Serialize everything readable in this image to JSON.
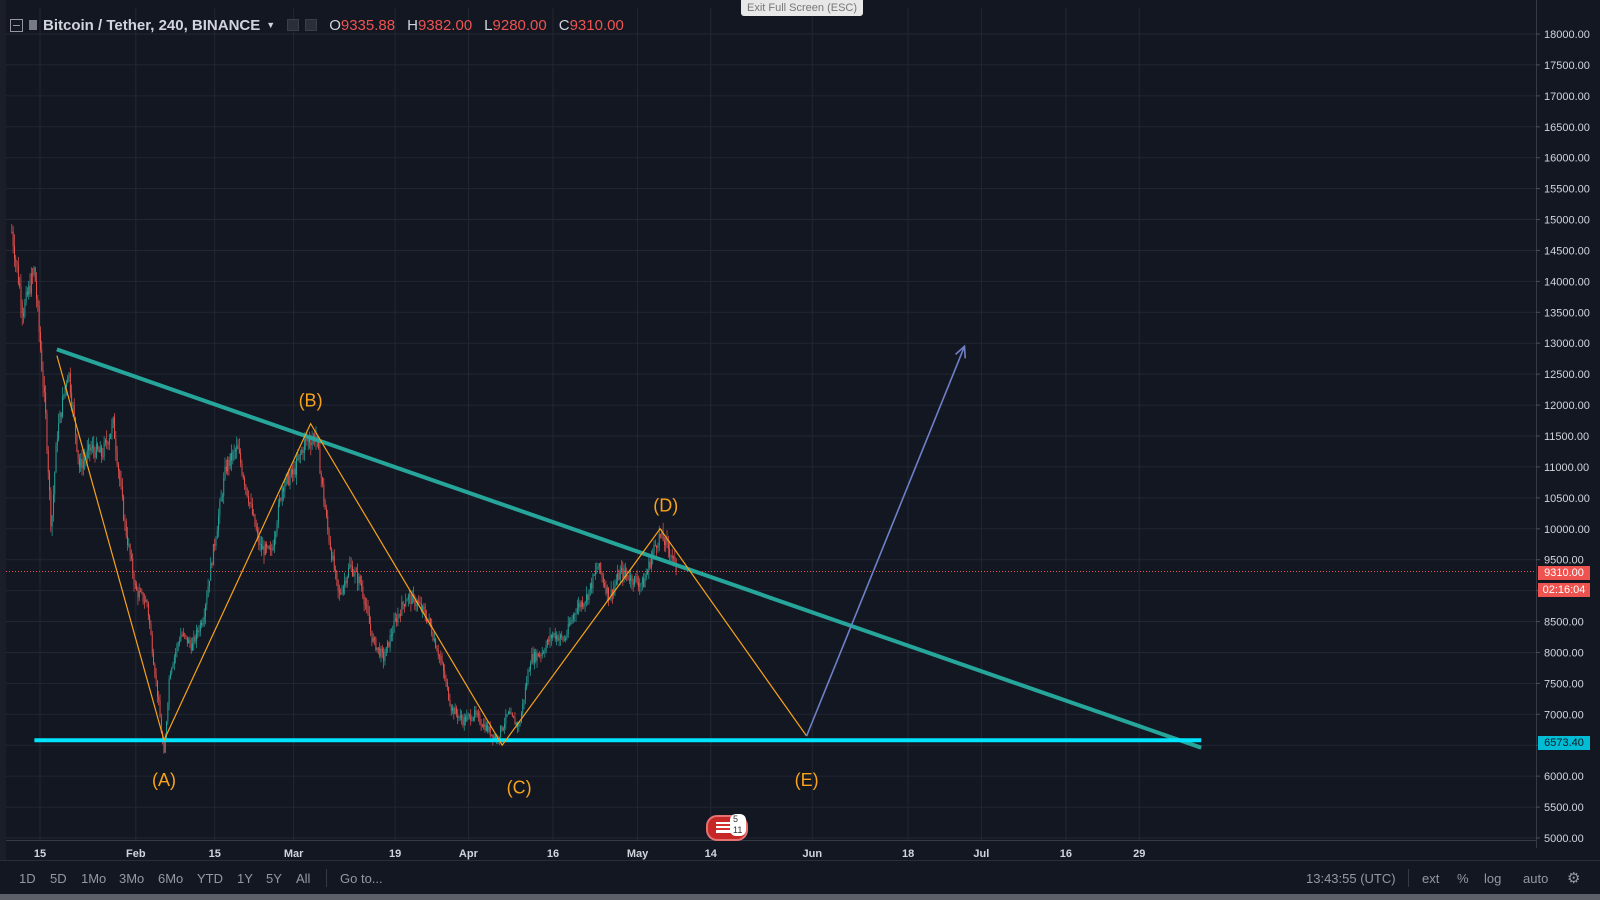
{
  "header": {
    "symbol": "Bitcoin / Tether, 240, BINANCE",
    "open_label": "O",
    "open": "9335.88",
    "high_label": "H",
    "high": "9382.00",
    "low_label": "L",
    "low": "9280.00",
    "close_label": "C",
    "close": "9310.00"
  },
  "exit_fullscreen": "Exit Full Screen (ESC)",
  "chart_data": {
    "type": "line",
    "title": "Bitcoin / Tether, 240, BINANCE",
    "xlabel": "",
    "ylabel": "",
    "ylim": [
      5000,
      18250
    ],
    "y_ticks": [
      "18000.00",
      "17500.00",
      "17000.00",
      "16500.00",
      "16000.00",
      "15500.00",
      "15000.00",
      "14500.00",
      "14000.00",
      "13500.00",
      "13000.00",
      "12500.00",
      "12000.00",
      "11500.00",
      "11000.00",
      "10500.00",
      "10000.00",
      "9500.00",
      "9000.00",
      "8500.00",
      "8000.00",
      "7500.00",
      "7000.00",
      "6500.00",
      "6000.00",
      "5500.00",
      "5000.00"
    ],
    "x_ticks": [
      {
        "label": "15",
        "date": "2018-01-15"
      },
      {
        "label": "Feb",
        "date": "2018-02-01"
      },
      {
        "label": "15",
        "date": "2018-02-15"
      },
      {
        "label": "Mar",
        "date": "2018-03-01"
      },
      {
        "label": "19",
        "date": "2018-03-19"
      },
      {
        "label": "Apr",
        "date": "2018-04-01"
      },
      {
        "label": "16",
        "date": "2018-04-16"
      },
      {
        "label": "May",
        "date": "2018-05-01"
      },
      {
        "label": "14",
        "date": "2018-05-14"
      },
      {
        "label": "Jun",
        "date": "2018-06-01"
      },
      {
        "label": "18",
        "date": "2018-06-18"
      },
      {
        "label": "Jul",
        "date": "2018-07-01"
      },
      {
        "label": "16",
        "date": "2018-07-16"
      },
      {
        "label": "29",
        "date": "2018-07-29"
      }
    ],
    "price_path": [
      [
        "2018-01-10",
        14800
      ],
      [
        "2018-01-12",
        13500
      ],
      [
        "2018-01-14",
        14200
      ],
      [
        "2018-01-16",
        11800
      ],
      [
        "2018-01-17",
        10000
      ],
      [
        "2018-01-18",
        11500
      ],
      [
        "2018-01-20",
        12600
      ],
      [
        "2018-01-22",
        11000
      ],
      [
        "2018-01-24",
        11300
      ],
      [
        "2018-01-26",
        11200
      ],
      [
        "2018-01-28",
        11700
      ],
      [
        "2018-01-30",
        10100
      ],
      [
        "2018-02-01",
        9000
      ],
      [
        "2018-02-03",
        8800
      ],
      [
        "2018-02-05",
        7200
      ],
      [
        "2018-02-06",
        6300
      ],
      [
        "2018-02-07",
        7700
      ],
      [
        "2018-02-09",
        8300
      ],
      [
        "2018-02-11",
        8100
      ],
      [
        "2018-02-13",
        8600
      ],
      [
        "2018-02-15",
        9800
      ],
      [
        "2018-02-17",
        11000
      ],
      [
        "2018-02-19",
        11300
      ],
      [
        "2018-02-21",
        10500
      ],
      [
        "2018-02-23",
        9700
      ],
      [
        "2018-02-25",
        9600
      ],
      [
        "2018-02-27",
        10700
      ],
      [
        "2018-03-01",
        10900
      ],
      [
        "2018-03-03",
        11400
      ],
      [
        "2018-03-05",
        11500
      ],
      [
        "2018-03-07",
        10000
      ],
      [
        "2018-03-09",
        8900
      ],
      [
        "2018-03-11",
        9400
      ],
      [
        "2018-03-13",
        9100
      ],
      [
        "2018-03-15",
        8200
      ],
      [
        "2018-03-17",
        7900
      ],
      [
        "2018-03-19",
        8500
      ],
      [
        "2018-03-21",
        8900
      ],
      [
        "2018-03-23",
        8800
      ],
      [
        "2018-03-25",
        8500
      ],
      [
        "2018-03-27",
        7900
      ],
      [
        "2018-03-29",
        7100
      ],
      [
        "2018-03-31",
        6900
      ],
      [
        "2018-04-02",
        7000
      ],
      [
        "2018-04-04",
        6800
      ],
      [
        "2018-04-06",
        6600
      ],
      [
        "2018-04-08",
        7000
      ],
      [
        "2018-04-10",
        6800
      ],
      [
        "2018-04-12",
        7900
      ],
      [
        "2018-04-14",
        8000
      ],
      [
        "2018-04-16",
        8300
      ],
      [
        "2018-04-18",
        8200
      ],
      [
        "2018-04-20",
        8700
      ],
      [
        "2018-04-22",
        8900
      ],
      [
        "2018-04-24",
        9400
      ],
      [
        "2018-04-26",
        8900
      ],
      [
        "2018-04-28",
        9300
      ],
      [
        "2018-04-30",
        9200
      ],
      [
        "2018-05-02",
        9100
      ],
      [
        "2018-05-04",
        9700
      ],
      [
        "2018-05-05",
        9900
      ],
      [
        "2018-05-07",
        9600
      ],
      [
        "2018-05-08",
        9310
      ]
    ],
    "patterns": [
      {
        "name": "resistance-trendline",
        "color": "#26a69a",
        "points": [
          [
            "2018-01-18",
            12900
          ],
          [
            "2018-08-09",
            6460
          ]
        ]
      },
      {
        "name": "support-line",
        "color": "#00e5ff",
        "points": [
          [
            "2018-01-14",
            6580
          ],
          [
            "2018-08-09",
            6580
          ]
        ]
      },
      {
        "name": "abcde-wave",
        "color": "#f7a21b",
        "points": [
          [
            "2018-01-18",
            12800
          ],
          [
            "2018-02-06",
            6580
          ],
          [
            "2018-03-04",
            11700
          ],
          [
            "2018-04-07",
            6500
          ],
          [
            "2018-05-05",
            10000
          ],
          [
            "2018-05-31",
            6650
          ]
        ]
      },
      {
        "name": "breakout-arrow",
        "color": "#6f80c8",
        "points": [
          [
            "2018-05-31",
            6650
          ],
          [
            "2018-06-28",
            12950
          ]
        ]
      }
    ],
    "wave_labels": [
      {
        "text": "(A)",
        "date": "2018-02-06",
        "price": 5840
      },
      {
        "text": "(B)",
        "date": "2018-03-04",
        "price": 11980
      },
      {
        "text": "(C)",
        "date": "2018-04-10",
        "price": 5720
      },
      {
        "text": "(D)",
        "date": "2018-05-06",
        "price": 10280
      },
      {
        "text": "(E)",
        "date": "2018-05-31",
        "price": 5840
      }
    ],
    "last_price": "9310.00",
    "countdown": "02:16:04",
    "support_price": "6573.40",
    "event_badge": "5 11",
    "grid": true
  },
  "bottom": {
    "timeframes": [
      "1D",
      "5D",
      "1Mo",
      "3Mo",
      "6Mo",
      "YTD",
      "1Y",
      "5Y",
      "All"
    ],
    "goto": "Go to...",
    "clock": "13:43:55 (UTC)",
    "ext": "ext",
    "pct": "%",
    "log": "log",
    "auto": "auto"
  }
}
